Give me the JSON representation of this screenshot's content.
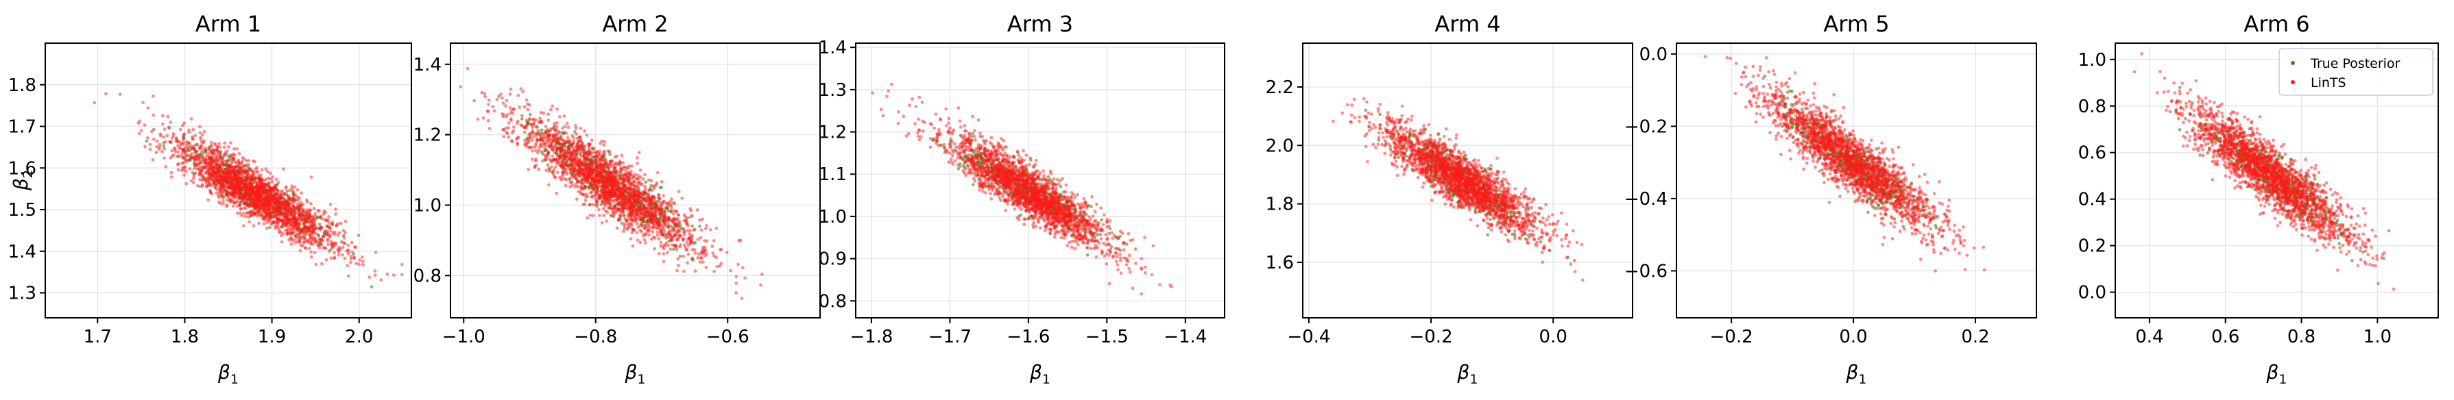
{
  "figure": {
    "ylabel_base": "β",
    "ylabel_sub": "2",
    "legend": {
      "placement": "top-right",
      "panel": 6,
      "entries": [
        {
          "label": "True Posterior",
          "color": "#3a8a1e"
        },
        {
          "label": "LinTS",
          "color": "#ff1a1a"
        }
      ]
    },
    "colors": {
      "true_posterior": "#3a8a1e",
      "lints": "#ff1a1a",
      "grid": "#e6e6e6"
    }
  },
  "chart_data": [
    {
      "type": "scatter",
      "title": "Arm 1",
      "xlabel_base": "β",
      "xlabel_sub": "1",
      "xlim": [
        1.64,
        2.06
      ],
      "ylim": [
        1.24,
        1.9
      ],
      "xticks": [
        1.7,
        1.8,
        1.9,
        2.0
      ],
      "xtick_labels": [
        "1.7",
        "1.8",
        "1.9",
        "2.0"
      ],
      "yticks": [
        1.3,
        1.4,
        1.5,
        1.6,
        1.7,
        1.8
      ],
      "ytick_labels": [
        "1.3",
        "1.4",
        "1.5",
        "1.6",
        "1.7",
        "1.8"
      ],
      "grid": true,
      "series": [
        {
          "name": "True Posterior",
          "color": "#3a8a1e",
          "n_points": 500,
          "mean": [
            1.88,
            1.54
          ],
          "sd": [
            0.04,
            0.055
          ],
          "corr": -0.9
        },
        {
          "name": "LinTS",
          "color": "#ff1a1a",
          "n_points": 2000,
          "mean": [
            1.88,
            1.54
          ],
          "sd": [
            0.05,
            0.07
          ],
          "corr": -0.9
        }
      ]
    },
    {
      "type": "scatter",
      "title": "Arm 2",
      "xlabel_base": "β",
      "xlabel_sub": "1",
      "xlim": [
        -1.02,
        -0.46
      ],
      "ylim": [
        0.68,
        1.46
      ],
      "xticks": [
        -1.0,
        -0.8,
        -0.6
      ],
      "xtick_labels": [
        "−1.0",
        "−0.8",
        "−0.6"
      ],
      "yticks": [
        0.8,
        1.0,
        1.2,
        1.4
      ],
      "ytick_labels": [
        "0.8",
        "1.0",
        "1.2",
        "1.4"
      ],
      "grid": true,
      "series": [
        {
          "name": "True Posterior",
          "color": "#3a8a1e",
          "n_points": 500,
          "mean": [
            -0.78,
            1.06
          ],
          "sd": [
            0.055,
            0.075
          ],
          "corr": -0.9
        },
        {
          "name": "LinTS",
          "color": "#ff1a1a",
          "n_points": 2000,
          "mean": [
            -0.78,
            1.06
          ],
          "sd": [
            0.07,
            0.095
          ],
          "corr": -0.9
        }
      ]
    },
    {
      "type": "scatter",
      "title": "Arm 3",
      "xlabel_base": "β",
      "xlabel_sub": "1",
      "xlim": [
        -1.82,
        -1.35
      ],
      "ylim": [
        0.76,
        1.41
      ],
      "xticks": [
        -1.8,
        -1.7,
        -1.6,
        -1.5,
        -1.4
      ],
      "xtick_labels": [
        "−1.8",
        "−1.7",
        "−1.6",
        "−1.5",
        "−1.4"
      ],
      "yticks": [
        0.8,
        0.9,
        1.0,
        1.1,
        1.2,
        1.3,
        1.4
      ],
      "ytick_labels": [
        "0.8",
        "0.9",
        "1.0",
        "1.1",
        "1.2",
        "1.3",
        "1.4"
      ],
      "grid": true,
      "series": [
        {
          "name": "True Posterior",
          "color": "#3a8a1e",
          "n_points": 500,
          "mean": [
            -1.6,
            1.06
          ],
          "sd": [
            0.045,
            0.055
          ],
          "corr": -0.9
        },
        {
          "name": "LinTS",
          "color": "#ff1a1a",
          "n_points": 2000,
          "mean": [
            -1.6,
            1.06
          ],
          "sd": [
            0.055,
            0.07
          ],
          "corr": -0.9
        }
      ]
    },
    {
      "type": "scatter",
      "title": "Arm 4",
      "xlabel_base": "β",
      "xlabel_sub": "1",
      "xlim": [
        -0.41,
        0.13
      ],
      "ylim": [
        1.41,
        2.35
      ],
      "xticks": [
        -0.4,
        -0.2,
        0.0
      ],
      "xtick_labels": [
        "−0.4",
        "−0.2",
        "0.0"
      ],
      "yticks": [
        1.6,
        1.8,
        2.0,
        2.2
      ],
      "ytick_labels": [
        "1.6",
        "1.8",
        "2.0",
        "2.2"
      ],
      "grid": true,
      "series": [
        {
          "name": "True Posterior",
          "color": "#3a8a1e",
          "n_points": 500,
          "mean": [
            -0.15,
            1.88
          ],
          "sd": [
            0.05,
            0.075
          ],
          "corr": -0.88
        },
        {
          "name": "LinTS",
          "color": "#ff1a1a",
          "n_points": 2000,
          "mean": [
            -0.15,
            1.88
          ],
          "sd": [
            0.065,
            0.095
          ],
          "corr": -0.88
        }
      ]
    },
    {
      "type": "scatter",
      "title": "Arm 5",
      "xlabel_base": "β",
      "xlabel_sub": "1",
      "xlim": [
        -0.29,
        0.3
      ],
      "ylim": [
        -0.73,
        0.03
      ],
      "xticks": [
        -0.2,
        0.0,
        0.2
      ],
      "xtick_labels": [
        "−0.2",
        "0.0",
        "0.2"
      ],
      "yticks": [
        -0.6,
        -0.4,
        -0.2,
        0.0
      ],
      "ytick_labels": [
        "−0.6",
        "−0.4",
        "−0.2",
        "0.0"
      ],
      "grid": true,
      "series": [
        {
          "name": "True Posterior",
          "color": "#3a8a1e",
          "n_points": 500,
          "mean": [
            0.0,
            -0.3
          ],
          "sd": [
            0.055,
            0.075
          ],
          "corr": -0.9
        },
        {
          "name": "LinTS",
          "color": "#ff1a1a",
          "n_points": 2000,
          "mean": [
            0.0,
            -0.3
          ],
          "sd": [
            0.07,
            0.095
          ],
          "corr": -0.9
        }
      ]
    },
    {
      "type": "scatter",
      "title": "Arm 6",
      "xlabel_base": "β",
      "xlabel_sub": "1",
      "xlim": [
        0.31,
        1.16
      ],
      "ylim": [
        -0.11,
        1.07
      ],
      "xticks": [
        0.4,
        0.6,
        0.8,
        1.0
      ],
      "xtick_labels": [
        "0.4",
        "0.6",
        "0.8",
        "1.0"
      ],
      "yticks": [
        0.0,
        0.2,
        0.4,
        0.6,
        0.8,
        1.0
      ],
      "ytick_labels": [
        "0.0",
        "0.2",
        "0.4",
        "0.6",
        "0.8",
        "1.0"
      ],
      "grid": true,
      "series": [
        {
          "name": "True Posterior",
          "color": "#3a8a1e",
          "n_points": 500,
          "mean": [
            0.72,
            0.5
          ],
          "sd": [
            0.085,
            0.115
          ],
          "corr": -0.9
        },
        {
          "name": "LinTS",
          "color": "#ff1a1a",
          "n_points": 2000,
          "mean": [
            0.72,
            0.5
          ],
          "sd": [
            0.11,
            0.145
          ],
          "corr": -0.9
        }
      ]
    }
  ]
}
